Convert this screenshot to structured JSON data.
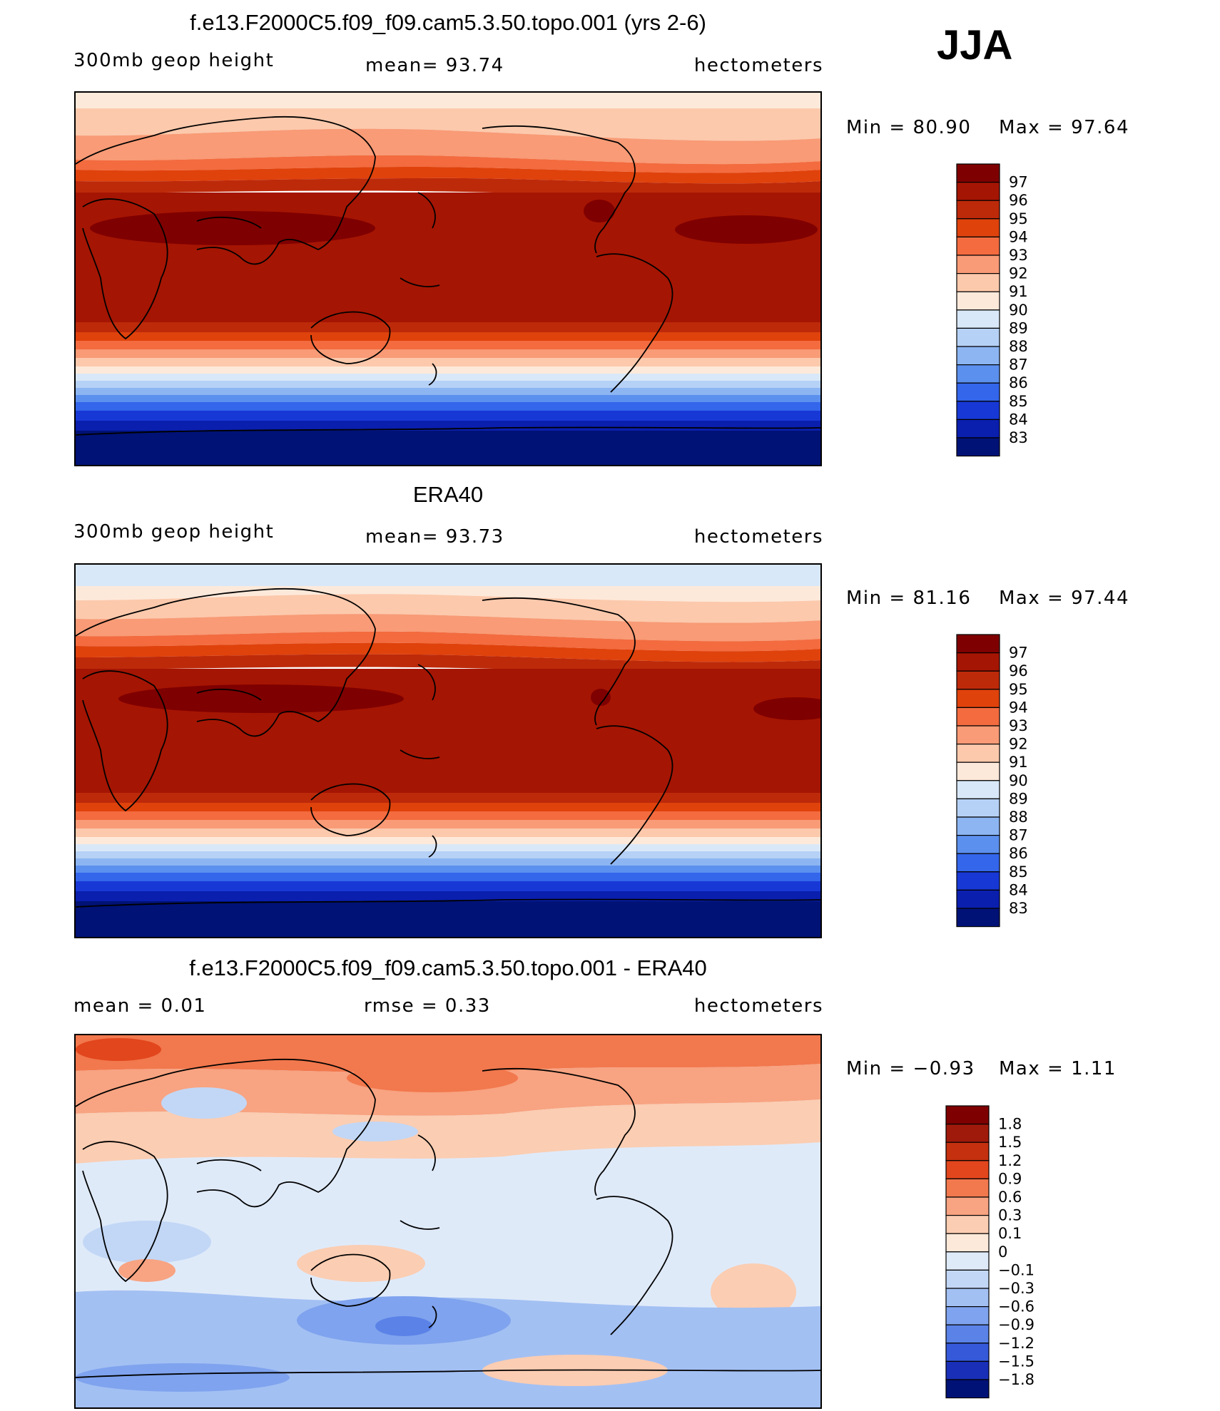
{
  "season": "JJA",
  "panels": [
    {
      "title": "f.e13.F2000C5.f09_f09.cam5.3.50.topo.001 (yrs 2-6)",
      "left_label": "300mb  geop  height",
      "center_label": "mean=   93.74",
      "right_label": "hectometers",
      "min_label": "Min  =   80.90",
      "max_label": "Max  =   97.64",
      "colorbar_labels": [
        "97",
        "96",
        "95",
        "94",
        "93",
        "92",
        "91",
        "90",
        "89",
        "88",
        "87",
        "86",
        "85",
        "84",
        "83"
      ]
    },
    {
      "title": "ERA40",
      "left_label": "300mb  geop  height",
      "center_label": "mean=   93.73",
      "right_label": "hectometers",
      "min_label": "Min  =   81.16",
      "max_label": "Max  =   97.44",
      "colorbar_labels": [
        "97",
        "96",
        "95",
        "94",
        "93",
        "92",
        "91",
        "90",
        "89",
        "88",
        "87",
        "86",
        "85",
        "84",
        "83"
      ]
    },
    {
      "title": "f.e13.F2000C5.f09_f09.cam5.3.50.topo.001 - ERA40",
      "left_label": "mean  =     0.01",
      "center_label": "rmse  =     0.33",
      "right_label": "hectometers",
      "min_label": "Min  =   −0.93",
      "max_label": "Max  =     1.11",
      "colorbar_labels": [
        "1.8",
        "1.5",
        "1.2",
        "0.9",
        "0.6",
        "0.3",
        "0.1",
        "0",
        "−0.1",
        "−0.3",
        "−0.6",
        "−0.9",
        "−1.2",
        "−1.5",
        "−1.8"
      ]
    }
  ],
  "colors": {
    "field_scale": [
      "#7f0000",
      "#a51503",
      "#bd2a0a",
      "#e0420c",
      "#f36b3f",
      "#f89b76",
      "#fcc9ac",
      "#fde9da",
      "#d9e8f8",
      "#b6d1f6",
      "#8cb5f2",
      "#5c90ee",
      "#3366ea",
      "#1838d6",
      "#0a1fae",
      "#001276"
    ],
    "diff_scale": [
      "#7f0000",
      "#a01a0c",
      "#c5300f",
      "#e2461d",
      "#f2784d",
      "#f8a381",
      "#fbcdb2",
      "#fde9da",
      "#dfeaf9",
      "#c2d7f6",
      "#a3c0f3",
      "#7fa3ee",
      "#5a82e7",
      "#3659d9",
      "#1a2fb8",
      "#001276"
    ]
  }
}
